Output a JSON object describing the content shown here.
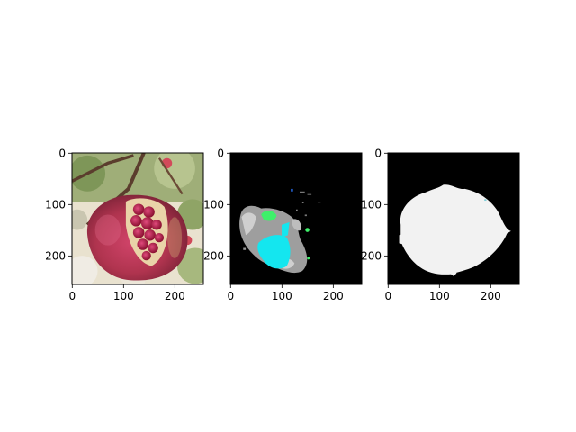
{
  "chart_data": [
    {
      "type": "image",
      "content": "photo of an open pomegranate on a branch",
      "xlim": [
        0,
        255
      ],
      "ylim": [
        255,
        0
      ],
      "xticks": [
        0,
        100,
        200
      ],
      "yticks": [
        0,
        100,
        200
      ],
      "x_tick_labels": [
        "0",
        "100",
        "200"
      ],
      "y_tick_labels": [
        "0",
        "100",
        "200"
      ]
    },
    {
      "type": "image",
      "content": "segmentation overlay on black background (gray, cyan, green regions)",
      "xlim": [
        0,
        255
      ],
      "ylim": [
        255,
        0
      ],
      "xticks": [
        0,
        100,
        200
      ],
      "yticks": [
        0,
        100,
        200
      ],
      "x_tick_labels": [
        "0",
        "100",
        "200"
      ],
      "y_tick_labels": [
        "0",
        "100",
        "200"
      ],
      "colors": {
        "background": "#000000",
        "gray": "#9e9e9e",
        "light_gray": "#c8c8c8",
        "cyan": "#14e6ef",
        "green": "#3ef06a"
      }
    },
    {
      "type": "image",
      "content": "binary mask: white blob on black background",
      "xlim": [
        0,
        255
      ],
      "ylim": [
        255,
        0
      ],
      "xticks": [
        0,
        100,
        200
      ],
      "yticks": [
        0,
        100,
        200
      ],
      "x_tick_labels": [
        "0",
        "100",
        "200"
      ],
      "y_tick_labels": [
        "0",
        "100",
        "200"
      ],
      "colors": {
        "background": "#000000",
        "mask": "#f2f2f2"
      }
    }
  ]
}
